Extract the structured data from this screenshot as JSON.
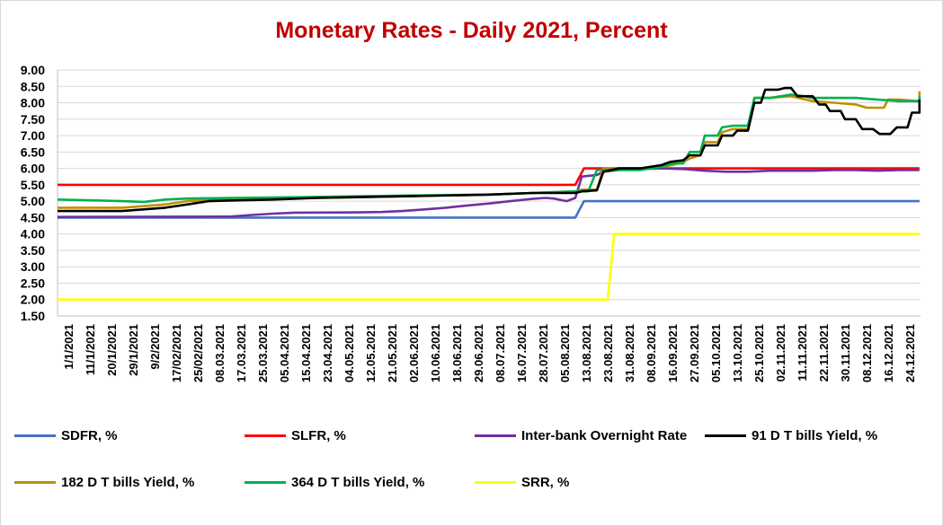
{
  "chart_data": {
    "type": "line",
    "title": "Monetary Rates - Daily 2021, Percent",
    "xlabel": "",
    "ylabel": "",
    "ylim": [
      1.5,
      9.0
    ],
    "y_ticks": [
      "9.00",
      "8.50",
      "8.00",
      "7.50",
      "7.00",
      "6.50",
      "6.00",
      "5.50",
      "5.00",
      "4.50",
      "4.00",
      "3.50",
      "3.00",
      "2.50",
      "2.00",
      "1.50"
    ],
    "x_ticks": [
      "1/1/2021",
      "11/1/2021",
      "20/1/2021",
      "29/1/2021",
      "9/2/2021",
      "17/02/2021",
      "25/02/2021",
      "08.03.2021",
      "17.03.2021",
      "25.03.2021",
      "05.04.2021",
      "15.04.2021",
      "23.04.2021",
      "04.05.2021",
      "12.05.2021",
      "21.05.2021",
      "02.06.2021",
      "10.06.2021",
      "18.06.2021",
      "29.06.2021",
      "08.07.2021",
      "16.07.2021",
      "28.07.2021",
      "05.08.2021",
      "13.08.2021",
      "23.08.2021",
      "31.08.2021",
      "08.09.2021",
      "16.09.2021",
      "27.09.2021",
      "05.10.2021",
      "13.10.2021",
      "25.10.2021",
      "02.11.2021",
      "11.11.2021",
      "22.11.2021",
      "30.11.2021",
      "08.12.2021",
      "16.12.2021",
      "24.12.2021"
    ],
    "grid": true,
    "legend_position": "bottom",
    "series": [
      {
        "name": "SDFR, %",
        "color": "#4472c4",
        "points": [
          [
            0,
            4.5
          ],
          [
            24,
            4.5
          ],
          [
            24.4,
            5.0
          ],
          [
            40,
            5.0
          ]
        ]
      },
      {
        "name": "SLFR, %",
        "color": "#ff0000",
        "points": [
          [
            0,
            5.5
          ],
          [
            24,
            5.5
          ],
          [
            24.4,
            6.0
          ],
          [
            40,
            6.0
          ]
        ]
      },
      {
        "name": "Inter-bank Overnight Rate",
        "color": "#7030a0",
        "points": [
          [
            0,
            4.52
          ],
          [
            8,
            4.53
          ],
          [
            9,
            4.58
          ],
          [
            10,
            4.62
          ],
          [
            11,
            4.65
          ],
          [
            14,
            4.66
          ],
          [
            15,
            4.67
          ],
          [
            16,
            4.7
          ],
          [
            17,
            4.75
          ],
          [
            18,
            4.8
          ],
          [
            19,
            4.87
          ],
          [
            20,
            4.93
          ],
          [
            21,
            5.0
          ],
          [
            22,
            5.07
          ],
          [
            22.6,
            5.1
          ],
          [
            23,
            5.08
          ],
          [
            23.6,
            5.0
          ],
          [
            24,
            5.1
          ],
          [
            24.3,
            5.75
          ],
          [
            25,
            5.8
          ],
          [
            25.3,
            5.9
          ],
          [
            26,
            5.95
          ],
          [
            27,
            5.98
          ],
          [
            28,
            6.0
          ],
          [
            29,
            5.98
          ],
          [
            30,
            5.93
          ],
          [
            31,
            5.9
          ],
          [
            32,
            5.9
          ],
          [
            33,
            5.93
          ],
          [
            34,
            5.93
          ],
          [
            35,
            5.93
          ],
          [
            36,
            5.95
          ],
          [
            37,
            5.95
          ],
          [
            38,
            5.93
          ],
          [
            39,
            5.95
          ],
          [
            40,
            5.95
          ]
        ]
      },
      {
        "name": "91 D T bills Yield, %",
        "color": "#000000",
        "points": [
          [
            0,
            4.7
          ],
          [
            3,
            4.7
          ],
          [
            5,
            4.8
          ],
          [
            6,
            4.9
          ],
          [
            7,
            5.0
          ],
          [
            8,
            5.02
          ],
          [
            10,
            5.05
          ],
          [
            12,
            5.1
          ],
          [
            16,
            5.15
          ],
          [
            20,
            5.2
          ],
          [
            22,
            5.25
          ],
          [
            24,
            5.25
          ],
          [
            24.3,
            5.3
          ],
          [
            25,
            5.33
          ],
          [
            25.3,
            5.9
          ],
          [
            26,
            6.0
          ],
          [
            27,
            6.0
          ],
          [
            28,
            6.1
          ],
          [
            28.4,
            6.2
          ],
          [
            29,
            6.25
          ],
          [
            29.3,
            6.4
          ],
          [
            29.8,
            6.4
          ],
          [
            30,
            6.7
          ],
          [
            30.6,
            6.7
          ],
          [
            30.8,
            7.0
          ],
          [
            31.3,
            7.0
          ],
          [
            31.5,
            7.15
          ],
          [
            32,
            7.15
          ],
          [
            32.3,
            8.0
          ],
          [
            32.6,
            8.0
          ],
          [
            32.8,
            8.4
          ],
          [
            33.4,
            8.4
          ],
          [
            33.7,
            8.45
          ],
          [
            34,
            8.45
          ],
          [
            34.3,
            8.2
          ],
          [
            35,
            8.2
          ],
          [
            35.3,
            7.95
          ],
          [
            35.6,
            7.95
          ],
          [
            35.8,
            7.75
          ],
          [
            36.3,
            7.75
          ],
          [
            36.5,
            7.5
          ],
          [
            37,
            7.5
          ],
          [
            37.3,
            7.2
          ],
          [
            37.8,
            7.2
          ],
          [
            38.1,
            7.05
          ],
          [
            38.6,
            7.05
          ],
          [
            38.9,
            7.25
          ],
          [
            39.4,
            7.25
          ],
          [
            39.6,
            7.7
          ],
          [
            40,
            7.7
          ],
          [
            40.3,
            8.1
          ]
        ]
      },
      {
        "name": "182 D T bills Yield, %",
        "color": "#bf8f00",
        "points": [
          [
            0,
            4.8
          ],
          [
            3,
            4.8
          ],
          [
            5,
            4.9
          ],
          [
            6,
            5.0
          ],
          [
            7,
            5.03
          ],
          [
            8,
            5.05
          ],
          [
            12,
            5.1
          ],
          [
            16,
            5.15
          ],
          [
            20,
            5.2
          ],
          [
            22,
            5.25
          ],
          [
            24,
            5.3
          ],
          [
            24.3,
            5.35
          ],
          [
            25,
            5.35
          ],
          [
            25.3,
            6.0
          ],
          [
            26,
            6.0
          ],
          [
            27,
            6.0
          ],
          [
            28,
            6.05
          ],
          [
            28.5,
            6.1
          ],
          [
            29,
            6.2
          ],
          [
            29.3,
            6.3
          ],
          [
            29.8,
            6.4
          ],
          [
            30,
            6.8
          ],
          [
            30.6,
            6.8
          ],
          [
            30.8,
            7.1
          ],
          [
            31.3,
            7.2
          ],
          [
            32,
            7.2
          ],
          [
            32.3,
            8.15
          ],
          [
            33,
            8.15
          ],
          [
            34,
            8.2
          ],
          [
            35,
            8.05
          ],
          [
            36,
            8.0
          ],
          [
            37,
            7.95
          ],
          [
            37.5,
            7.85
          ],
          [
            38.3,
            7.85
          ],
          [
            38.5,
            8.1
          ],
          [
            39,
            8.1
          ],
          [
            40,
            8.05
          ],
          [
            40.3,
            8.35
          ]
        ]
      },
      {
        "name": "364 D T bills Yield, %",
        "color": "#00b050",
        "points": [
          [
            0,
            5.05
          ],
          [
            2,
            5.02
          ],
          [
            3,
            5.0
          ],
          [
            4,
            4.98
          ],
          [
            5,
            5.05
          ],
          [
            6,
            5.08
          ],
          [
            8,
            5.1
          ],
          [
            12,
            5.13
          ],
          [
            16,
            5.17
          ],
          [
            20,
            5.2
          ],
          [
            22,
            5.25
          ],
          [
            24,
            5.3
          ],
          [
            24.6,
            5.3
          ],
          [
            25,
            5.95
          ],
          [
            27,
            5.95
          ],
          [
            28,
            6.05
          ],
          [
            28.5,
            6.15
          ],
          [
            29,
            6.15
          ],
          [
            29.3,
            6.5
          ],
          [
            29.8,
            6.5
          ],
          [
            30,
            7.0
          ],
          [
            30.6,
            7.0
          ],
          [
            30.8,
            7.25
          ],
          [
            31.3,
            7.3
          ],
          [
            32,
            7.3
          ],
          [
            32.3,
            8.15
          ],
          [
            33,
            8.15
          ],
          [
            34,
            8.25
          ],
          [
            34.6,
            8.2
          ],
          [
            35,
            8.15
          ],
          [
            36,
            8.15
          ],
          [
            37,
            8.15
          ],
          [
            38,
            8.1
          ],
          [
            39,
            8.05
          ],
          [
            40,
            8.05
          ],
          [
            40.3,
            8.2
          ]
        ]
      },
      {
        "name": "SRR, %",
        "color": "#ffff00",
        "points": [
          [
            0,
            2.0
          ],
          [
            25.5,
            2.0
          ],
          [
            25.8,
            4.0
          ],
          [
            40,
            4.0
          ]
        ]
      }
    ]
  }
}
